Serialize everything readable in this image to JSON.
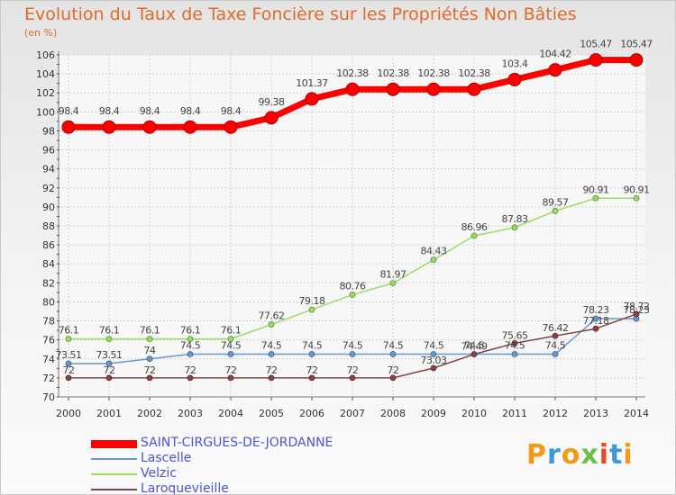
{
  "title": "Evolution du Taux de Taxe Foncière sur les Propriétés Non Bâties",
  "unit_label": "(en %)",
  "logo": {
    "letters": [
      "P",
      "r",
      "o",
      "x",
      "i",
      "t",
      "i"
    ],
    "colors": [
      "#f39a1b",
      "#3d9ad6",
      "#f39a1b",
      "#6cc04a",
      "#e64b2a",
      "#3d9ad6",
      "#f39a1b"
    ]
  },
  "chart_data": {
    "type": "line",
    "title": "Evolution du Taux de Taxe Foncière sur les Propriétés Non Bâties",
    "ylabel": "(en %)",
    "xlabel": "",
    "x": [
      "2000",
      "2001",
      "2002",
      "2003",
      "2004",
      "2005",
      "2006",
      "2007",
      "2008",
      "2009",
      "2010",
      "2011",
      "2012",
      "2013",
      "2014"
    ],
    "ylim": [
      70,
      106
    ],
    "yticks": [
      70,
      72,
      74,
      76,
      78,
      80,
      82,
      84,
      86,
      88,
      90,
      92,
      94,
      96,
      98,
      100,
      102,
      104,
      106
    ],
    "grid": true,
    "legend_position": "bottom-left",
    "series": [
      {
        "name": "SAINT-CIRGUES-DE-JORDANNE",
        "color": "#ff0000",
        "values": [
          98.4,
          98.4,
          98.4,
          98.4,
          98.4,
          99.38,
          101.37,
          102.38,
          102.38,
          102.38,
          102.38,
          103.4,
          104.42,
          105.47,
          105.47
        ],
        "labels": [
          "98.4",
          "98.4",
          "98.4",
          "98.4",
          "98.4",
          "99.38",
          "101.37",
          "102.38",
          "102.38",
          "102.38",
          "102.38",
          "103.4",
          "104.42",
          "105.47",
          "105.47"
        ]
      },
      {
        "name": "Lascelle",
        "color": "#6699cc",
        "values": [
          73.51,
          73.51,
          74,
          74.5,
          74.5,
          74.5,
          74.5,
          74.5,
          74.5,
          74.5,
          74.5,
          74.5,
          74.5,
          78.23,
          78.23
        ],
        "labels": [
          "73.51",
          "73.51",
          "74",
          "74.5",
          "74.5",
          "74.5",
          "74.5",
          "74.5",
          "74.5",
          "74.5",
          "74.5",
          "74.5",
          "74.5",
          "78.23",
          "78.23"
        ]
      },
      {
        "name": "Velzic",
        "color": "#99dd66",
        "values": [
          76.1,
          76.1,
          76.1,
          76.1,
          76.1,
          77.62,
          79.18,
          80.76,
          81.97,
          84.43,
          86.96,
          87.83,
          89.57,
          90.91,
          90.91
        ],
        "labels": [
          "76.1",
          "76.1",
          "76.1",
          "76.1",
          "76.1",
          "77.62",
          "79.18",
          "80.76",
          "81.97",
          "84.43",
          "86.96",
          "87.83",
          "89.57",
          "90.91",
          "90.91"
        ]
      },
      {
        "name": "Laroquevieille",
        "color": "#884444",
        "values": [
          72,
          72,
          72,
          72,
          72,
          72,
          72,
          72,
          72,
          73.03,
          74.49,
          75.65,
          76.42,
          77.18,
          78.72
        ],
        "labels": [
          "72",
          "72",
          "72",
          "72",
          "72",
          "72",
          "72",
          "72",
          "72",
          "73.03",
          "74.49",
          "75.65",
          "76.42",
          "77.18",
          "78.72"
        ]
      }
    ]
  }
}
